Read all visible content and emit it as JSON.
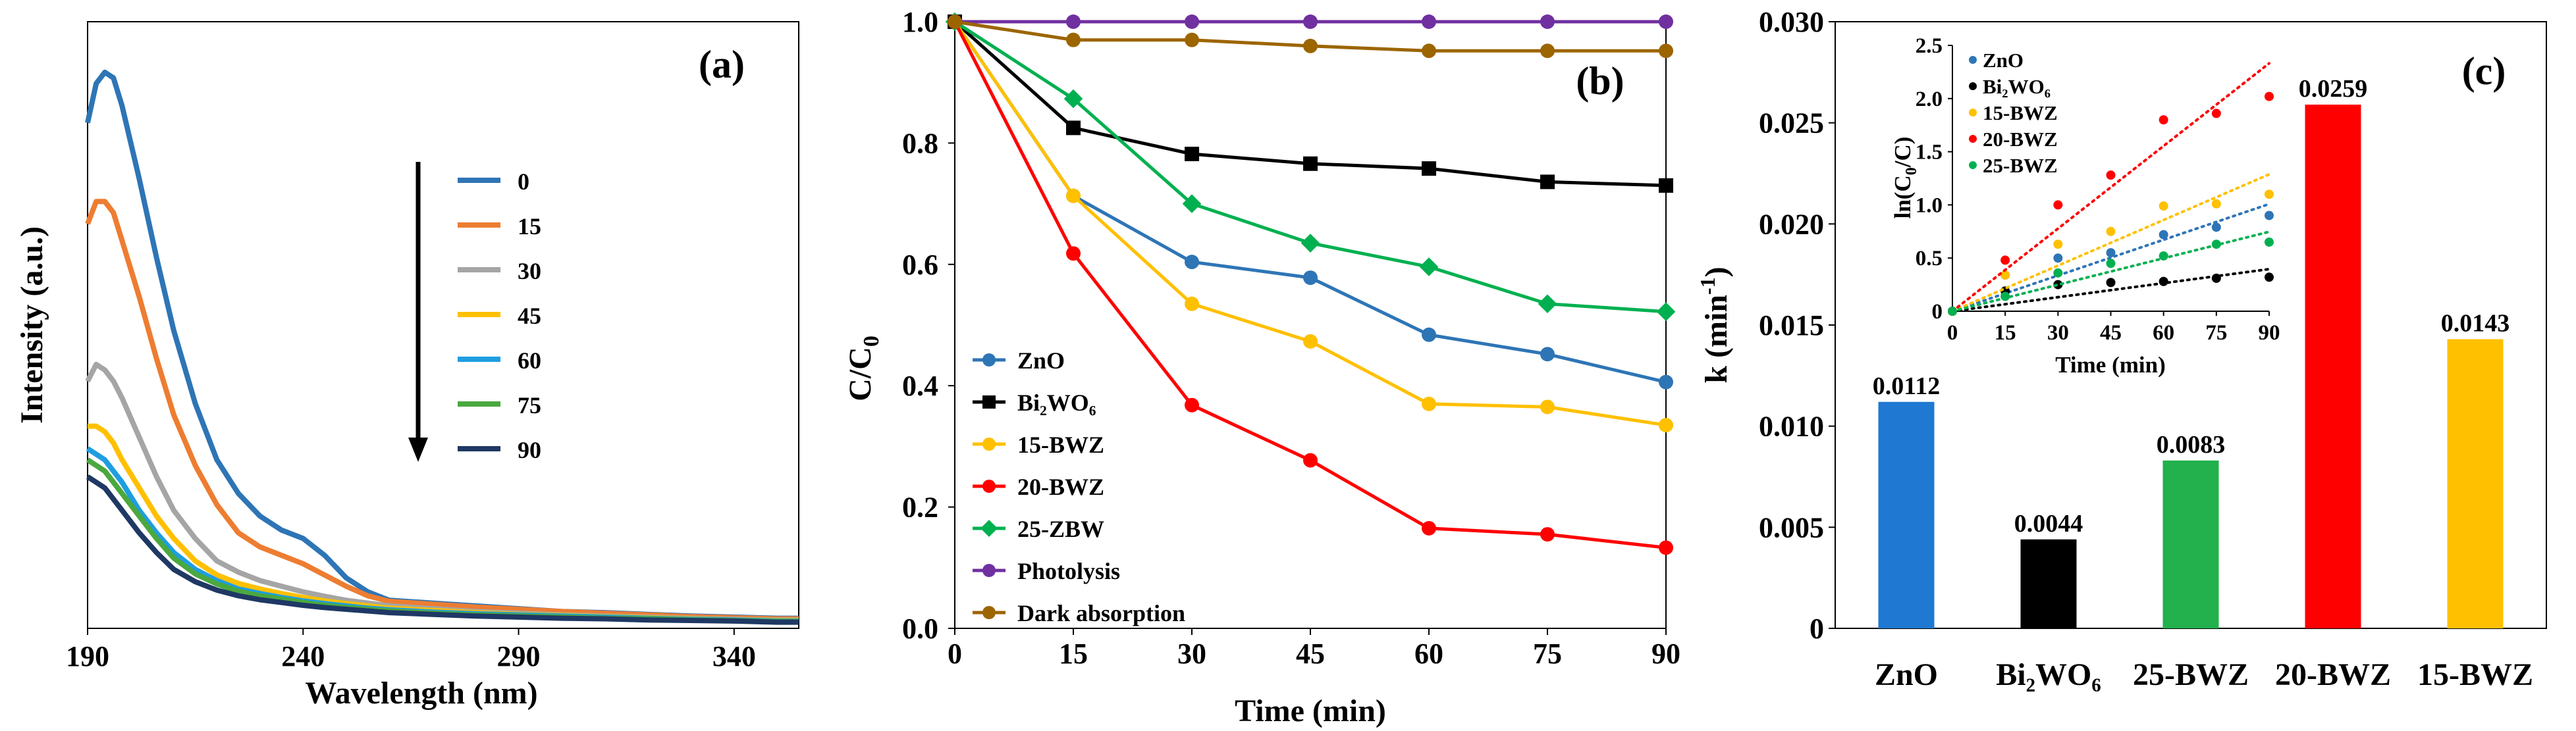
{
  "chart_data": [
    {
      "panel": "(a)",
      "type": "line",
      "xlabel": "Wavelength (nm)",
      "ylabel": "Intensity (a.u.)",
      "xlim": [
        190,
        355
      ],
      "ylim": [
        0,
        1.08
      ],
      "xticks": [
        "190",
        "240",
        "290",
        "340"
      ],
      "legend_position": "right",
      "legend_arrow": true,
      "series": [
        {
          "name": "0",
          "color": "#2e75b6",
          "x": [
            190,
            192,
            194,
            196,
            198,
            202,
            206,
            210,
            215,
            220,
            225,
            230,
            235,
            240,
            245,
            250,
            255,
            260,
            270,
            280,
            290,
            300,
            310,
            320,
            330,
            340,
            350,
            355
          ],
          "y": [
            0.9,
            0.97,
            0.99,
            0.98,
            0.93,
            0.8,
            0.66,
            0.53,
            0.4,
            0.3,
            0.24,
            0.2,
            0.175,
            0.16,
            0.13,
            0.09,
            0.065,
            0.05,
            0.045,
            0.04,
            0.035,
            0.03,
            0.028,
            0.025,
            0.022,
            0.02,
            0.018,
            0.018
          ]
        },
        {
          "name": "15",
          "color": "#ed7d31",
          "x": [
            190,
            192,
            194,
            196,
            198,
            202,
            206,
            210,
            215,
            220,
            225,
            230,
            235,
            240,
            245,
            250,
            255,
            260,
            270,
            280,
            290,
            300,
            310,
            320,
            330,
            340,
            350,
            355
          ],
          "y": [
            0.72,
            0.76,
            0.76,
            0.74,
            0.69,
            0.59,
            0.48,
            0.38,
            0.29,
            0.22,
            0.17,
            0.145,
            0.13,
            0.115,
            0.095,
            0.075,
            0.058,
            0.048,
            0.043,
            0.038,
            0.034,
            0.03,
            0.027,
            0.024,
            0.021,
            0.019,
            0.017,
            0.017
          ]
        },
        {
          "name": "30",
          "color": "#a5a5a5",
          "x": [
            190,
            192,
            194,
            196,
            198,
            202,
            206,
            210,
            215,
            220,
            225,
            230,
            235,
            240,
            245,
            250,
            255,
            260,
            270,
            280,
            290,
            300,
            310,
            320,
            330,
            340,
            350,
            355
          ],
          "y": [
            0.44,
            0.47,
            0.46,
            0.44,
            0.41,
            0.34,
            0.27,
            0.21,
            0.16,
            0.12,
            0.1,
            0.085,
            0.075,
            0.065,
            0.057,
            0.05,
            0.045,
            0.04,
            0.035,
            0.03,
            0.027,
            0.024,
            0.022,
            0.02,
            0.018,
            0.016,
            0.015,
            0.015
          ]
        },
        {
          "name": "45",
          "color": "#ffc000",
          "x": [
            190,
            192,
            194,
            196,
            198,
            202,
            206,
            210,
            215,
            220,
            225,
            230,
            235,
            240,
            245,
            250,
            255,
            260,
            270,
            280,
            290,
            300,
            310,
            320,
            330,
            340,
            350,
            355
          ],
          "y": [
            0.36,
            0.36,
            0.35,
            0.33,
            0.3,
            0.25,
            0.2,
            0.16,
            0.12,
            0.095,
            0.08,
            0.07,
            0.062,
            0.055,
            0.049,
            0.044,
            0.04,
            0.036,
            0.032,
            0.028,
            0.025,
            0.023,
            0.021,
            0.019,
            0.017,
            0.015,
            0.014,
            0.014
          ]
        },
        {
          "name": "60",
          "color": "#1e9ee0",
          "x": [
            190,
            192,
            194,
            196,
            198,
            202,
            206,
            210,
            215,
            220,
            225,
            230,
            235,
            240,
            245,
            250,
            255,
            260,
            270,
            280,
            290,
            300,
            310,
            320,
            330,
            340,
            350,
            355
          ],
          "y": [
            0.32,
            0.31,
            0.3,
            0.28,
            0.26,
            0.21,
            0.17,
            0.135,
            0.105,
            0.085,
            0.07,
            0.062,
            0.055,
            0.049,
            0.044,
            0.04,
            0.036,
            0.033,
            0.029,
            0.026,
            0.024,
            0.022,
            0.02,
            0.018,
            0.016,
            0.015,
            0.013,
            0.013
          ]
        },
        {
          "name": "75",
          "color": "#4aa83e",
          "x": [
            190,
            192,
            194,
            196,
            198,
            202,
            206,
            210,
            215,
            220,
            225,
            230,
            235,
            240,
            245,
            250,
            255,
            260,
            270,
            280,
            290,
            300,
            310,
            320,
            330,
            340,
            350,
            355
          ],
          "y": [
            0.3,
            0.29,
            0.28,
            0.26,
            0.24,
            0.2,
            0.16,
            0.125,
            0.097,
            0.079,
            0.066,
            0.058,
            0.052,
            0.046,
            0.041,
            0.037,
            0.034,
            0.031,
            0.027,
            0.024,
            0.022,
            0.02,
            0.018,
            0.017,
            0.015,
            0.014,
            0.012,
            0.012
          ]
        },
        {
          "name": "90",
          "color": "#1f3864",
          "x": [
            190,
            192,
            194,
            196,
            198,
            202,
            206,
            210,
            215,
            220,
            225,
            230,
            235,
            240,
            245,
            250,
            255,
            260,
            270,
            280,
            290,
            300,
            310,
            320,
            330,
            340,
            350,
            355
          ],
          "y": [
            0.27,
            0.26,
            0.25,
            0.23,
            0.21,
            0.17,
            0.135,
            0.105,
            0.083,
            0.068,
            0.058,
            0.051,
            0.046,
            0.041,
            0.037,
            0.034,
            0.031,
            0.028,
            0.025,
            0.022,
            0.02,
            0.018,
            0.017,
            0.015,
            0.014,
            0.013,
            0.011,
            0.011
          ]
        }
      ]
    },
    {
      "panel": "(b)",
      "type": "line",
      "xlabel": "Time (min)",
      "ylabel": "C/C0",
      "ylabel_main": "C/C",
      "ylabel_sub": "0",
      "xlim": [
        0,
        90
      ],
      "ylim": [
        0,
        1.0
      ],
      "xticks": [
        "0",
        "15",
        "30",
        "45",
        "60",
        "75",
        "90"
      ],
      "yticks": [
        "0.0",
        "0.2",
        "0.4",
        "0.6",
        "0.8",
        "1.0"
      ],
      "legend_position": "bottom-left",
      "x": [
        0,
        15,
        30,
        45,
        60,
        75,
        90
      ],
      "series": [
        {
          "name": "ZnO",
          "color": "#2e75b6",
          "marker": "circle",
          "values": [
            1.0,
            0.713,
            0.604,
            0.578,
            0.484,
            0.452,
            0.406
          ]
        },
        {
          "name": "Bi₂WO₆",
          "color": "#000000",
          "marker": "square",
          "values": [
            1.0,
            0.825,
            0.782,
            0.766,
            0.758,
            0.736,
            0.73
          ]
        },
        {
          "name": "15-BWZ",
          "color": "#ffc000",
          "marker": "circle",
          "values": [
            1.0,
            0.713,
            0.535,
            0.473,
            0.37,
            0.365,
            0.335
          ]
        },
        {
          "name": "20-BWZ",
          "color": "#ff0000",
          "marker": "circle",
          "values": [
            1.0,
            0.618,
            0.368,
            0.277,
            0.165,
            0.155,
            0.133
          ]
        },
        {
          "name": "25-ZBW",
          "color": "#00b050",
          "marker": "diamond",
          "values": [
            1.0,
            0.873,
            0.7,
            0.635,
            0.596,
            0.535,
            0.522
          ]
        },
        {
          "name": "Photolysis",
          "color": "#7030a0",
          "marker": "circle",
          "values": [
            1.0,
            1.0,
            1.0,
            1.0,
            1.0,
            1.0,
            1.0
          ]
        },
        {
          "name": "Dark absorption",
          "color": "#9c6500",
          "marker": "circle",
          "values": [
            1.0,
            0.97,
            0.97,
            0.96,
            0.952,
            0.952,
            0.952
          ]
        }
      ]
    },
    {
      "panel": "(c)",
      "type": "bar",
      "xlabel": "",
      "ylabel": "k (min-1)",
      "ylabel_main": "k (min",
      "ylabel_sup": "-1",
      "ylabel_end": ")",
      "ylim": [
        0,
        0.03
      ],
      "yticks": [
        "0",
        "0.005",
        "0.010",
        "0.015",
        "0.020",
        "0.025",
        "0.030"
      ],
      "categories": [
        "ZnO",
        "Bi₂WO₆",
        "25-BWZ",
        "20-BWZ",
        "15-BWZ"
      ],
      "values": [
        0.0112,
        0.0044,
        0.0083,
        0.0259,
        0.0143
      ],
      "value_labels": [
        "0.0112",
        "0.0044",
        "0.0083",
        "0.0259",
        "0.0143"
      ],
      "colors": [
        "#1f78d1",
        "#000000",
        "#22b14c",
        "#ff0000",
        "#ffc000"
      ]
    },
    {
      "panel": "(c) inset",
      "type": "scatter",
      "xlabel": "Time (min)",
      "ylabel": "ln(C0/C)",
      "ylabel_parts": [
        "ln(C",
        "0",
        "/C)"
      ],
      "xlim": [
        0,
        90
      ],
      "ylim": [
        0,
        2.5
      ],
      "xticks": [
        "0",
        "15",
        "30",
        "45",
        "60",
        "75",
        "90"
      ],
      "yticks": [
        "0",
        "0.5",
        "1.0",
        "1.5",
        "2.0",
        "2.5"
      ],
      "fit": "dotted linear trendline through origin",
      "legend_position": "top-left",
      "x": [
        0,
        15,
        30,
        45,
        60,
        75,
        90
      ],
      "series": [
        {
          "name": "ZnO",
          "color": "#2e75b6",
          "values": [
            0,
            0.34,
            0.5,
            0.55,
            0.72,
            0.79,
            0.9
          ],
          "fit_slope": 0.0112
        },
        {
          "name": "Bi₂WO₆",
          "color": "#000000",
          "values": [
            0,
            0.19,
            0.25,
            0.27,
            0.28,
            0.31,
            0.32
          ],
          "fit_slope": 0.0044
        },
        {
          "name": "15-BWZ",
          "color": "#ffc000",
          "values": [
            0,
            0.34,
            0.63,
            0.75,
            0.99,
            1.01,
            1.1
          ],
          "fit_slope": 0.0143
        },
        {
          "name": "20-BWZ",
          "color": "#ff0000",
          "values": [
            0,
            0.48,
            1.0,
            1.28,
            1.8,
            1.86,
            2.02
          ],
          "fit_slope": 0.0259
        },
        {
          "name": "25-BWZ",
          "color": "#00b050",
          "values": [
            0,
            0.14,
            0.36,
            0.45,
            0.52,
            0.63,
            0.65
          ],
          "fit_slope": 0.0083
        }
      ]
    }
  ]
}
